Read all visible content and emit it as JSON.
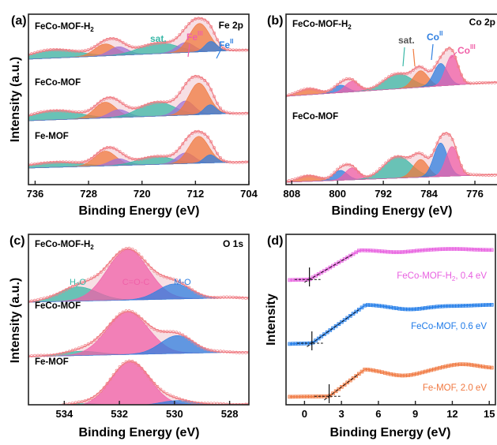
{
  "colors": {
    "envelope_fill": "#f6d9df",
    "envelope_line": "#f07f86",
    "teal": "#39b8a7",
    "orange": "#f07a3f",
    "purple": "#a072d6",
    "blue": "#2f7fe0",
    "pink": "#f060a8",
    "gray_fill": "#d4d4dc",
    "trace_pink": "#e860e0",
    "trace_blue": "#1e7ae8",
    "trace_orange": "#f07840"
  },
  "chart_data": [
    {
      "panel": "a",
      "panel_label": "(a)",
      "type": "area",
      "title": "Fe 2p",
      "xlabel": "Binding Energy (eV)",
      "ylabel": "Intensity (a.u.)",
      "xlim": [
        737,
        704
      ],
      "x_reversed": true,
      "xticks": [
        736,
        728,
        720,
        712,
        704
      ],
      "series": [
        {
          "name": "FeCo-MOF-H2",
          "label_main": "FeCo-MOF-H",
          "label_sub": "2",
          "peaks": [
            {
              "center": 733.0,
              "amp": 0.3,
              "width": 3.5,
              "color": "teal"
            },
            {
              "center": 725.5,
              "amp": 0.42,
              "width": 1.6,
              "color": "orange"
            },
            {
              "center": 723.5,
              "amp": 0.3,
              "width": 1.4,
              "color": "purple"
            },
            {
              "center": 717.5,
              "amp": 0.38,
              "width": 2.8,
              "color": "teal"
            },
            {
              "center": 713.5,
              "amp": 0.35,
              "width": 1.3,
              "color": "purple"
            },
            {
              "center": 711.4,
              "amp": 1.0,
              "width": 1.5,
              "color": "orange"
            },
            {
              "center": 709.7,
              "amp": 0.35,
              "width": 0.9,
              "color": "blue"
            }
          ]
        },
        {
          "name": "FeCo-MOF",
          "label_main": "FeCo-MOF",
          "label_sub": "",
          "peaks": [
            {
              "center": 733.0,
              "amp": 0.3,
              "width": 3.5,
              "color": "teal"
            },
            {
              "center": 725.5,
              "amp": 0.5,
              "width": 1.6,
              "color": "orange"
            },
            {
              "center": 723.5,
              "amp": 0.25,
              "width": 1.4,
              "color": "purple"
            },
            {
              "center": 717.8,
              "amp": 0.45,
              "width": 2.6,
              "color": "teal"
            },
            {
              "center": 713.5,
              "amp": 0.45,
              "width": 1.3,
              "color": "purple"
            },
            {
              "center": 711.5,
              "amp": 1.0,
              "width": 1.5,
              "color": "orange"
            },
            {
              "center": 709.8,
              "amp": 0.3,
              "width": 0.9,
              "color": "blue"
            }
          ]
        },
        {
          "name": "Fe-MOF",
          "label_main": "Fe-MOF",
          "label_sub": "",
          "peaks": [
            {
              "center": 733.0,
              "amp": 0.2,
              "width": 3.5,
              "color": "teal"
            },
            {
              "center": 725.5,
              "amp": 0.55,
              "width": 1.6,
              "color": "orange"
            },
            {
              "center": 723.5,
              "amp": 0.25,
              "width": 1.4,
              "color": "purple"
            },
            {
              "center": 718.0,
              "amp": 0.3,
              "width": 2.6,
              "color": "teal"
            },
            {
              "center": 713.5,
              "amp": 0.4,
              "width": 1.3,
              "color": "purple"
            },
            {
              "center": 711.5,
              "amp": 1.0,
              "width": 1.5,
              "color": "orange"
            },
            {
              "center": 709.8,
              "amp": 0.3,
              "width": 0.9,
              "color": "blue"
            }
          ]
        }
      ],
      "annotations": [
        {
          "text": "sat.",
          "sup": "",
          "color": "teal"
        },
        {
          "text": "Fe",
          "sup": "III",
          "color": "pink"
        },
        {
          "text": "Fe",
          "sup": "II",
          "color": "blue"
        }
      ]
    },
    {
      "panel": "b",
      "panel_label": "(b)",
      "type": "area",
      "title": "Co 2p",
      "xlabel": "Binding Energy (eV)",
      "ylabel": "",
      "xlim": [
        809,
        772
      ],
      "x_reversed": true,
      "xticks": [
        808,
        800,
        792,
        784,
        776
      ],
      "series": [
        {
          "name": "FeCo-MOF-H2",
          "label_main": "FeCo-MOF-H",
          "label_sub": "2",
          "peaks": [
            {
              "center": 805.0,
              "amp": 0.2,
              "width": 1.8,
              "color": "orange"
            },
            {
              "center": 799.5,
              "amp": 0.25,
              "width": 1.2,
              "color": "blue"
            },
            {
              "center": 797.5,
              "amp": 0.35,
              "width": 1.2,
              "color": "pink"
            },
            {
              "center": 789.5,
              "amp": 0.5,
              "width": 2.4,
              "color": "teal"
            },
            {
              "center": 785.5,
              "amp": 0.55,
              "width": 1.3,
              "color": "orange"
            },
            {
              "center": 782.0,
              "amp": 0.75,
              "width": 1.2,
              "color": "blue"
            },
            {
              "center": 780.0,
              "amp": 1.0,
              "width": 1.1,
              "color": "pink"
            }
          ]
        },
        {
          "name": "FeCo-MOF",
          "label_main": "FeCo-MOF",
          "label_sub": "",
          "peaks": [
            {
              "center": 805.0,
              "amp": 0.15,
              "width": 1.8,
              "color": "orange"
            },
            {
              "center": 799.5,
              "amp": 0.25,
              "width": 1.2,
              "color": "blue"
            },
            {
              "center": 797.5,
              "amp": 0.3,
              "width": 1.2,
              "color": "pink"
            },
            {
              "center": 789.5,
              "amp": 0.55,
              "width": 2.4,
              "color": "teal"
            },
            {
              "center": 785.5,
              "amp": 0.45,
              "width": 1.3,
              "color": "orange"
            },
            {
              "center": 782.0,
              "amp": 0.85,
              "width": 1.2,
              "color": "blue"
            },
            {
              "center": 780.0,
              "amp": 0.75,
              "width": 1.1,
              "color": "pink"
            }
          ]
        }
      ],
      "annotations": [
        {
          "text": "sat.",
          "sup": "",
          "color": "teal"
        },
        {
          "text": "Co",
          "sup": "II",
          "color": "blue"
        },
        {
          "text": "Co",
          "sup": "III",
          "color": "pink"
        }
      ]
    },
    {
      "panel": "c",
      "panel_label": "(c)",
      "type": "area",
      "title": "O 1s",
      "xlabel": "Binding Energy (eV)",
      "ylabel": "Intensity (a.u.)",
      "xlim": [
        535.3,
        527.3
      ],
      "x_reversed": true,
      "xticks": [
        534,
        532,
        530,
        528
      ],
      "series": [
        {
          "name": "FeCo-MOF-H2",
          "label_main": "FeCo-MOF-H",
          "label_sub": "2",
          "peaks": [
            {
              "center": 533.5,
              "amp": 0.28,
              "width": 0.7,
              "color": "teal"
            },
            {
              "center": 531.7,
              "amp": 1.0,
              "width": 0.75,
              "color": "pink"
            },
            {
              "center": 530.0,
              "amp": 0.3,
              "width": 0.6,
              "color": "blue"
            }
          ]
        },
        {
          "name": "FeCo-MOF",
          "label_main": "FeCo-MOF",
          "label_sub": "",
          "peaks": [
            {
              "center": 533.4,
              "amp": 0.1,
              "width": 0.7,
              "color": "teal"
            },
            {
              "center": 531.7,
              "amp": 1.0,
              "width": 0.75,
              "color": "pink"
            },
            {
              "center": 529.9,
              "amp": 0.42,
              "width": 0.6,
              "color": "blue"
            }
          ]
        },
        {
          "name": "Fe-MOF",
          "label_main": "Fe-MOF",
          "label_sub": "",
          "peaks": [
            {
              "center": 533.3,
              "amp": 0.06,
              "width": 0.7,
              "color": "teal"
            },
            {
              "center": 531.6,
              "amp": 1.0,
              "width": 0.7,
              "color": "pink"
            },
            {
              "center": 529.9,
              "amp": 0.1,
              "width": 0.6,
              "color": "blue"
            }
          ]
        }
      ],
      "annotations": [
        {
          "text": "H",
          "sub": "2",
          "tail": "O",
          "color": "teal"
        },
        {
          "text": "C=O-C",
          "sub": "",
          "tail": "",
          "color": "pink"
        },
        {
          "text": "M-O",
          "sub": "",
          "tail": "",
          "color": "blue"
        }
      ]
    },
    {
      "panel": "d",
      "panel_label": "(d)",
      "type": "line",
      "title": "",
      "xlabel": "Binding Energy (eV)",
      "ylabel": "Intensity",
      "xlim": [
        -1.5,
        15.5
      ],
      "xticks": [
        0,
        3,
        6,
        9,
        12,
        15
      ],
      "series": [
        {
          "name": "FeCo-MOF-H2",
          "label_main": "FeCo-MOF-H",
          "label_sub": "2",
          "label_tail": ", 0.4 eV",
          "color": "trace_pink",
          "onset": 0.4,
          "edge_end": 4.5,
          "base": 0.0,
          "plateau": 1.0,
          "features": [
            {
              "center": 7.5,
              "amp": -0.07,
              "width": 1.2
            },
            {
              "center": 12.0,
              "amp": 0.04,
              "width": 1.5
            }
          ]
        },
        {
          "name": "FeCo-MOF",
          "label_main": "FeCo-MOF, 0.6 eV",
          "label_sub": "",
          "label_tail": "",
          "color": "trace_blue",
          "onset": 0.6,
          "edge_end": 5.0,
          "base": 0.0,
          "plateau": 1.0,
          "features": [
            {
              "center": 8.5,
              "amp": -0.12,
              "width": 1.5
            },
            {
              "center": 12.5,
              "amp": -0.03,
              "width": 1.5
            }
          ]
        },
        {
          "name": "Fe-MOF",
          "label_main": "Fe-MOF, 2.0 eV",
          "label_sub": "",
          "label_tail": "",
          "color": "trace_orange",
          "onset": 2.0,
          "edge_end": 5.0,
          "base": 0.0,
          "plateau": 1.0,
          "features": [
            {
              "center": 8.0,
              "amp": -0.25,
              "width": 1.5
            },
            {
              "center": 12.8,
              "amp": 0.15,
              "width": 1.3
            }
          ]
        }
      ]
    }
  ]
}
